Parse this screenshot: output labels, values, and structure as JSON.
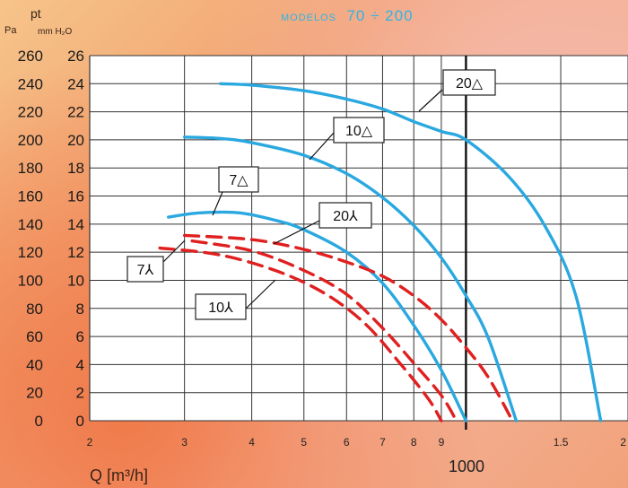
{
  "chart_data": {
    "type": "line",
    "subtitle_prefix": "MODELOS",
    "subtitle_value": "70 ÷ 200",
    "y_title": "pt",
    "y_unit_pa": "Pa",
    "y_unit_mm": "mm H₂O",
    "xlabel": "Q [m³/h]",
    "x_scale": "log",
    "xlim": [
      200,
      2000
    ],
    "x_tick_labels": [
      "2",
      "3",
      "4",
      "5",
      "6",
      "7",
      "8",
      "9",
      "1.5",
      "2"
    ],
    "x_ticks": [
      200,
      300,
      400,
      500,
      600,
      700,
      800,
      900,
      1500,
      2000
    ],
    "x_major_label": "1000",
    "x_major": 1000,
    "ylim_mm": [
      0,
      26
    ],
    "y_ticks_mm": [
      0,
      2,
      4,
      6,
      8,
      10,
      12,
      14,
      16,
      18,
      20,
      22,
      24,
      26
    ],
    "y_ticks_pa": [
      0,
      20,
      40,
      60,
      80,
      100,
      120,
      140,
      160,
      180,
      200,
      220,
      240,
      260
    ],
    "grid": true,
    "series": [
      {
        "name": "20△",
        "color": "#2aa8e0",
        "style": "solid",
        "x": [
          350,
          400,
          500,
          600,
          700,
          800,
          900,
          1000,
          1200,
          1400,
          1600,
          1780
        ],
        "y": [
          24.0,
          23.9,
          23.5,
          22.9,
          22.2,
          21.3,
          20.6,
          20.0,
          17.4,
          13.9,
          8.9,
          0
        ]
      },
      {
        "name": "10△",
        "color": "#2aa8e0",
        "style": "solid",
        "x": [
          300,
          350,
          400,
          500,
          600,
          700,
          800,
          900,
          1000,
          1100,
          1240
        ],
        "y": [
          20.2,
          20.1,
          19.8,
          18.9,
          17.6,
          15.9,
          13.9,
          11.6,
          8.9,
          5.9,
          0
        ]
      },
      {
        "name": "7△",
        "color": "#2aa8e0",
        "style": "solid",
        "x": [
          280,
          320,
          380,
          450,
          500,
          600,
          700,
          800,
          900,
          1000
        ],
        "y": [
          14.5,
          14.8,
          14.8,
          14.2,
          13.6,
          12.0,
          9.8,
          6.8,
          3.6,
          0
        ]
      },
      {
        "name": "20⅄",
        "color": "#e02020",
        "style": "dashed",
        "x": [
          300,
          400,
          500,
          600,
          700,
          800,
          900,
          1000,
          1100,
          1220
        ],
        "y": [
          13.2,
          12.9,
          12.2,
          11.3,
          10.3,
          8.9,
          7.2,
          5.2,
          3.1,
          0
        ]
      },
      {
        "name": "10⅄",
        "color": "#e02020",
        "style": "dashed",
        "x": [
          310,
          400,
          500,
          600,
          700,
          800,
          900,
          960
        ],
        "y": [
          12.8,
          12.1,
          10.7,
          9.0,
          6.6,
          4.1,
          1.8,
          0
        ]
      },
      {
        "name": "7⅄",
        "color": "#e02020",
        "style": "dashed",
        "x": [
          270,
          350,
          450,
          550,
          650,
          750,
          850,
          900
        ],
        "y": [
          12.3,
          11.8,
          10.6,
          9.0,
          6.9,
          4.2,
          1.6,
          0
        ]
      }
    ],
    "callouts": [
      {
        "label": "20△",
        "series": "20△"
      },
      {
        "label": "10△",
        "series": "10△"
      },
      {
        "label": "7△",
        "series": "7△"
      },
      {
        "label": "20⅄",
        "series": "20⅄"
      },
      {
        "label": "7⅄",
        "series": "7⅄"
      },
      {
        "label": "10⅄",
        "series": "10⅄"
      }
    ]
  }
}
